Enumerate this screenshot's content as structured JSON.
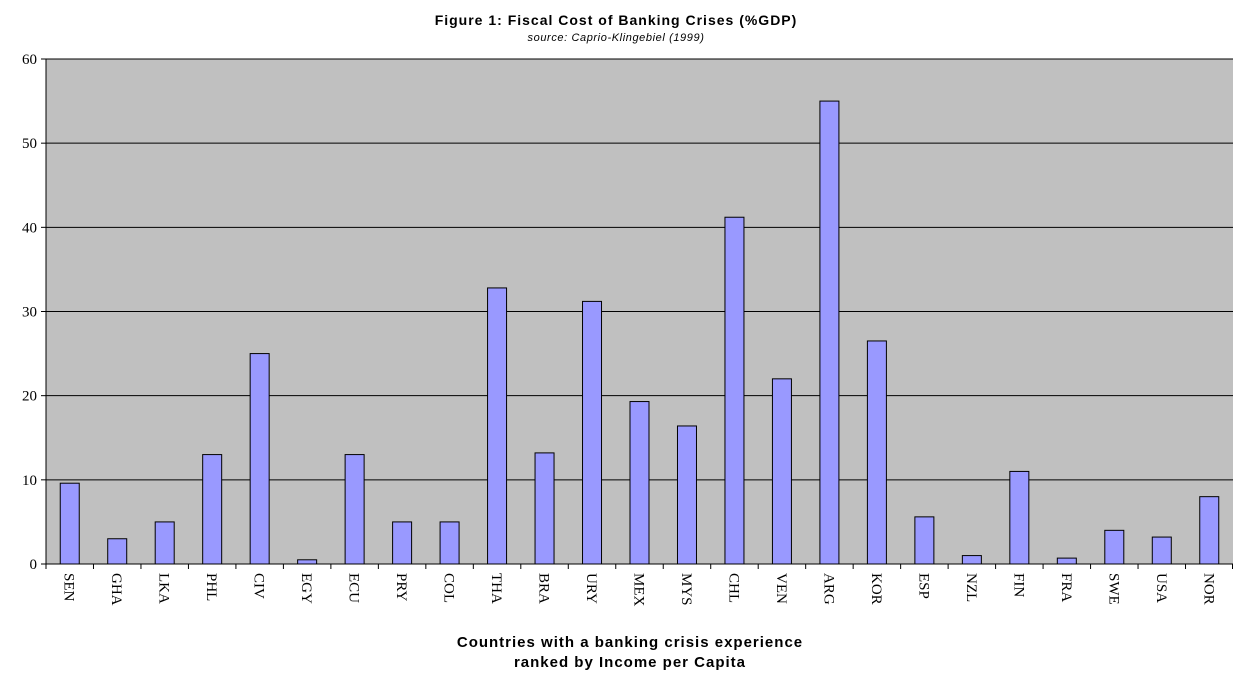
{
  "chart_data": {
    "type": "bar",
    "title": "Figure 1: Fiscal Cost of Banking Crises (%GDP)",
    "subtitle": "source: Caprio-Klingebiel (1999)",
    "xlabel_line1": "Countries with a banking crisis experience",
    "xlabel_line2": "ranked by Income per Capita",
    "ylabel": "",
    "ylim": [
      0,
      60
    ],
    "yticks": [
      "0",
      "10",
      "20",
      "30",
      "40",
      "50",
      "60"
    ],
    "grid": true,
    "categories": [
      "SEN",
      "GHA",
      "LKA",
      "PHL",
      "CIV",
      "EGY",
      "ECU",
      "PRY",
      "COL",
      "THA",
      "BRA",
      "URY",
      "MEX",
      "MYS",
      "CHL",
      "VEN",
      "ARG",
      "KOR",
      "ESP",
      "NZL",
      "FIN",
      "FRA",
      "SWE",
      "USA",
      "NOR"
    ],
    "values": [
      9.6,
      3.0,
      5.0,
      13.0,
      25.0,
      0.5,
      13.0,
      5.0,
      5.0,
      32.8,
      13.2,
      31.2,
      19.3,
      16.4,
      41.2,
      22.0,
      55.0,
      26.5,
      5.6,
      1.0,
      11.0,
      0.7,
      4.0,
      3.2,
      8.0
    ]
  },
  "colors": {
    "plot_background": "#c0c0c0",
    "bar_fill": "#9999ff",
    "bar_stroke": "#000000",
    "gridline": "#000000"
  }
}
